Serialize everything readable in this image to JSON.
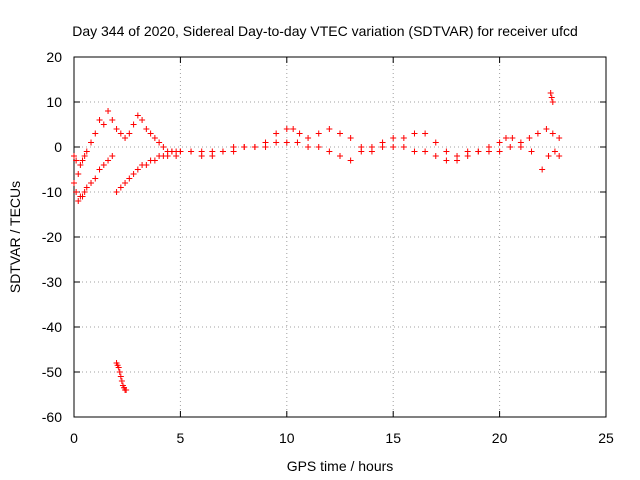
{
  "chart_data": {
    "type": "scatter",
    "title": "Day 344 of 2020, Sidereal Day-to-day VTEC variation (SDTVAR) for receiver ufcd",
    "xlabel": "GPS time / hours",
    "ylabel": "SDTVAR / TECUs",
    "xlim": [
      0,
      25
    ],
    "ylim": [
      -60,
      20
    ],
    "xticks": [
      0,
      5,
      10,
      15,
      20,
      25
    ],
    "yticks": [
      -60,
      -50,
      -40,
      -30,
      -20,
      -10,
      0,
      10,
      20
    ],
    "grid": true,
    "marker": "+",
    "color": "#ff0000",
    "series": [
      {
        "name": "main-trace-upper",
        "x": [
          0.0,
          0.1,
          0.2,
          0.3,
          0.4,
          0.5,
          0.6,
          0.8,
          1.0,
          1.2,
          1.4,
          1.6,
          1.8,
          2.0,
          2.2,
          2.4,
          2.6,
          2.8,
          3.0,
          3.2,
          3.4,
          3.6,
          3.8,
          4.0,
          4.2,
          4.4,
          4.6,
          4.8,
          5.0,
          5.5,
          6.0,
          6.5,
          7.0,
          7.5,
          8.0,
          8.5,
          9.0,
          9.5,
          10.0,
          10.3,
          10.6,
          11.0,
          11.5,
          12.0,
          12.5,
          13.0,
          13.5,
          14.0,
          14.5,
          15.0,
          15.5,
          16.0,
          16.5,
          17.0,
          17.5,
          18.0,
          18.5,
          19.0,
          19.5,
          20.0,
          20.3,
          20.6,
          21.0,
          21.4,
          21.8,
          22.2,
          22.5,
          22.8
        ],
        "y": [
          -2,
          -3,
          -6,
          -4,
          -3,
          -2,
          -1,
          1,
          3,
          6,
          5,
          8,
          6,
          4,
          3,
          2,
          3,
          5,
          7,
          6,
          4,
          3,
          2,
          1,
          0,
          -1,
          -1,
          -2,
          -1,
          -1,
          -2,
          -2,
          -1,
          -1,
          0,
          0,
          1,
          3,
          4,
          4,
          3,
          2,
          3,
          4,
          3,
          2,
          0,
          -1,
          0,
          2,
          2,
          3,
          3,
          1,
          -1,
          -2,
          -1,
          -1,
          0,
          1,
          2,
          2,
          1,
          2,
          3,
          4,
          3,
          2
        ]
      },
      {
        "name": "main-trace-lower",
        "x": [
          0.0,
          0.1,
          0.2,
          0.3,
          0.4,
          0.5,
          0.6,
          0.8,
          1.0,
          1.2,
          1.4,
          1.6,
          1.8,
          2.0,
          2.2,
          2.4,
          2.6,
          2.8,
          3.0,
          3.2,
          3.4,
          3.6,
          3.8,
          4.0,
          4.2,
          4.4,
          4.6,
          4.8,
          5.0,
          5.5,
          6.0,
          6.5,
          7.0,
          7.5,
          8.0,
          8.5,
          9.0,
          9.5,
          10.0,
          10.5,
          11.0,
          11.5,
          12.0,
          12.5,
          13.0,
          13.5,
          14.0,
          14.5,
          15.0,
          15.5,
          16.0,
          16.5,
          17.0,
          17.5,
          18.0,
          18.5,
          19.0,
          19.5,
          20.0,
          20.5,
          21.0,
          21.5,
          22.0,
          22.3,
          22.6,
          22.8
        ],
        "y": [
          -8,
          -10,
          -12,
          -11,
          -11,
          -10,
          -9,
          -8,
          -7,
          -5,
          -4,
          -3,
          -2,
          -10,
          -9,
          -8,
          -7,
          -6,
          -5,
          -4,
          -4,
          -3,
          -3,
          -2,
          -2,
          -2,
          -1,
          -1,
          -1,
          -1,
          -1,
          -1,
          -1,
          0,
          0,
          0,
          0,
          1,
          1,
          1,
          0,
          0,
          -1,
          -2,
          -3,
          -1,
          0,
          1,
          0,
          0,
          -1,
          -1,
          -2,
          -3,
          -3,
          -2,
          -1,
          -1,
          -1,
          0,
          0,
          -1,
          -5,
          -2,
          -1,
          -2
        ]
      },
      {
        "name": "outlier-cluster",
        "x": [
          2.0,
          2.05,
          2.1,
          2.15,
          2.2,
          2.25,
          2.3,
          2.35,
          2.4,
          2.45
        ],
        "y": [
          -48,
          -48.5,
          -49,
          -50,
          -51,
          -52,
          -53,
          -53.5,
          -54,
          -54
        ]
      },
      {
        "name": "spike",
        "x": [
          22.4,
          22.45,
          22.5
        ],
        "y": [
          12,
          11,
          10
        ]
      }
    ]
  }
}
